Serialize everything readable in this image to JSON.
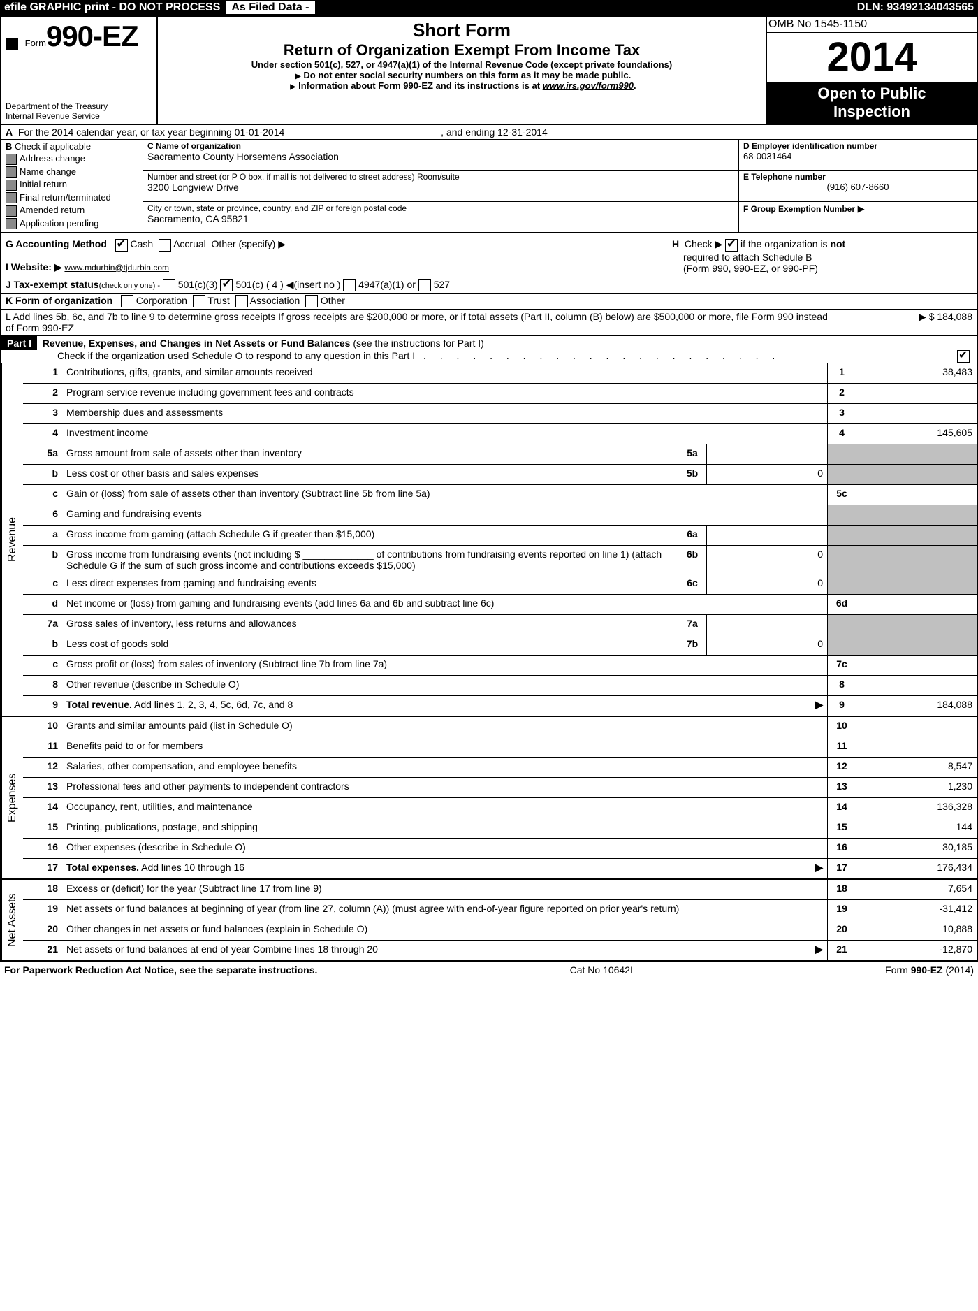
{
  "topbar": {
    "left_text": "efile GRAPHIC print - DO NOT PROCESS",
    "tab_text": "As Filed Data -",
    "dln_label": "DLN:",
    "dln_value": "93492134043565"
  },
  "header": {
    "form_label": "Form",
    "form_number": "990-EZ",
    "dept1": "Department of the Treasury",
    "dept2": "Internal Revenue Service",
    "short_form": "Short Form",
    "title": "Return of Organization Exempt From Income Tax",
    "subtitle": "Under section 501(c), 527, or 4947(a)(1) of the Internal Revenue Code (except private foundations)",
    "note1": "Do not enter social security numbers on this form as it may be made public.",
    "note2_pre": "Information about Form 990-EZ and its instructions is at ",
    "note2_link": "www.irs.gov/form990",
    "omb": "OMB No 1545-1150",
    "year": "2014",
    "open1": "Open to Public",
    "open2": "Inspection"
  },
  "rowA": {
    "label_a": "A",
    "text1": "For the 2014 calendar year, or tax year beginning 01-01-2014",
    "text2": ", and ending 12-31-2014"
  },
  "colB": {
    "label": "B",
    "header": "Check if applicable",
    "opts": [
      "Address change",
      "Name change",
      "Initial return",
      "Final return/terminated",
      "Amended return",
      "Application pending"
    ]
  },
  "colC": {
    "c_label": "C Name of organization",
    "c_value": "Sacramento County Horsemens Association",
    "addr_label": "Number and street (or P O box, if mail is not delivered to street address) Room/suite",
    "addr_value": "3200 Longview Drive",
    "city_label": "City or town, state or province, country, and ZIP or foreign postal code",
    "city_value": "Sacramento, CA  95821"
  },
  "colD": {
    "d_label": "D Employer identification number",
    "d_value": "68-0031464",
    "e_label": "E Telephone number",
    "e_value": "(916) 607-8660",
    "f_label": "F Group Exemption Number",
    "f_arrow": "▶"
  },
  "rowG": {
    "label": "G Accounting Method",
    "cash": "Cash",
    "accrual": "Accrual",
    "other": "Other (specify) ▶"
  },
  "rowH": {
    "pre": "H",
    "text1": "Check ▶",
    "text2": "if the organization is",
    "not": "not",
    "text3": "required to attach Schedule B",
    "text4": "(Form 990, 990-EZ, or 990-PF)"
  },
  "rowI": {
    "label": "I Website: ▶",
    "value": "www.mdurbin@tjdurbin.com"
  },
  "rowJ": {
    "label": "J Tax-exempt status",
    "hint": "(check only one) -",
    "o1": "501(c)(3)",
    "o2": "501(c) ( 4 )",
    "o2_hint": "◀(insert no )",
    "o3": "4947(a)(1) or",
    "o4": "527"
  },
  "rowK": {
    "label": "K Form of organization",
    "o1": "Corporation",
    "o2": "Trust",
    "o3": "Association",
    "o4": "Other"
  },
  "rowL": {
    "text": "L Add lines 5b, 6c, and 7b to line 9 to determine gross receipts If gross receipts are $200,000 or more, or if total assets (Part II, column (B) below) are $500,000 or more, file Form 990 instead of Form 990-EZ",
    "arrow": "▶",
    "value": "$ 184,088"
  },
  "part1": {
    "label": "Part I",
    "title": "Revenue, Expenses, and Changes in Net Assets or Fund Balances",
    "hint": "(see the instructions for Part I)",
    "sub": "Check if the organization used Schedule O to respond to any question in this Part I"
  },
  "sections": {
    "revenue": "Revenue",
    "expenses": "Expenses",
    "netassets": "Net Assets"
  },
  "lines": [
    {
      "n": "1",
      "d": "Contributions, gifts, grants, and similar amounts received",
      "rn": "1",
      "rv": "38,483"
    },
    {
      "n": "2",
      "d": "Program service revenue including government fees and contracts",
      "rn": "2",
      "rv": ""
    },
    {
      "n": "3",
      "d": "Membership dues and assessments",
      "rn": "3",
      "rv": ""
    },
    {
      "n": "4",
      "d": "Investment income",
      "rn": "4",
      "rv": "145,605"
    },
    {
      "n": "5a",
      "d": "Gross amount from sale of assets other than inventory",
      "sn": "5a",
      "sv": "",
      "rn": "",
      "rv": "",
      "shaded": true
    },
    {
      "n": "b",
      "d": "Less  cost or other basis and sales expenses",
      "sn": "5b",
      "sv": "0",
      "rn": "",
      "rv": "",
      "shaded": true
    },
    {
      "n": "c",
      "d": "Gain or (loss) from sale of assets other than inventory (Subtract line 5b from line 5a)",
      "rn": "5c",
      "rv": ""
    },
    {
      "n": "6",
      "d": "Gaming and fundraising events",
      "rn": "",
      "rv": "",
      "shaded": true,
      "nobottom": true
    },
    {
      "n": "a",
      "d": "Gross income from gaming (attach Schedule G if greater than $15,000)",
      "sn": "6a",
      "sv": "",
      "rn": "",
      "rv": "",
      "shaded": true
    },
    {
      "n": "b",
      "d": "Gross income from fundraising events (not including $ _____________ of contributions from fundraising events reported on line 1) (attach Schedule G if the sum of such gross income and contributions exceeds $15,000)",
      "sn": "6b",
      "sv": "0",
      "rn": "",
      "rv": "",
      "shaded": true
    },
    {
      "n": "c",
      "d": "Less  direct expenses from gaming and fundraising events",
      "sn": "6c",
      "sv": "0",
      "rn": "",
      "rv": "",
      "shaded": true
    },
    {
      "n": "d",
      "d": "Net income or (loss) from gaming and fundraising events (add lines 6a and 6b and subtract line 6c)",
      "rn": "6d",
      "rv": ""
    },
    {
      "n": "7a",
      "d": "Gross sales of inventory, less returns and allowances",
      "sn": "7a",
      "sv": "",
      "rn": "",
      "rv": "",
      "shaded": true
    },
    {
      "n": "b",
      "d": "Less  cost of goods sold",
      "sn": "7b",
      "sv": "0",
      "rn": "",
      "rv": "",
      "shaded": true
    },
    {
      "n": "c",
      "d": "Gross profit or (loss) from sales of inventory (Subtract line 7b from line 7a)",
      "rn": "7c",
      "rv": ""
    },
    {
      "n": "8",
      "d": "Other revenue (describe in Schedule O)",
      "rn": "8",
      "rv": ""
    },
    {
      "n": "9",
      "d": "Total revenue. Add lines 1, 2, 3, 4, 5c, 6d, 7c, and 8",
      "rn": "9",
      "rv": "184,088",
      "bold": true,
      "arrow": true
    }
  ],
  "expense_lines": [
    {
      "n": "10",
      "d": "Grants and similar amounts paid (list in Schedule O)",
      "rn": "10",
      "rv": ""
    },
    {
      "n": "11",
      "d": "Benefits paid to or for members",
      "rn": "11",
      "rv": ""
    },
    {
      "n": "12",
      "d": "Salaries, other compensation, and employee benefits",
      "rn": "12",
      "rv": "8,547"
    },
    {
      "n": "13",
      "d": "Professional fees and other payments to independent contractors",
      "rn": "13",
      "rv": "1,230"
    },
    {
      "n": "14",
      "d": "Occupancy, rent, utilities, and maintenance",
      "rn": "14",
      "rv": "136,328"
    },
    {
      "n": "15",
      "d": "Printing, publications, postage, and shipping",
      "rn": "15",
      "rv": "144"
    },
    {
      "n": "16",
      "d": "Other expenses (describe in Schedule O)",
      "rn": "16",
      "rv": "30,185"
    },
    {
      "n": "17",
      "d": "Total expenses. Add lines 10 through 16",
      "rn": "17",
      "rv": "176,434",
      "bold": true,
      "arrow": true
    }
  ],
  "net_lines": [
    {
      "n": "18",
      "d": "Excess or (deficit) for the year (Subtract line 17 from line 9)",
      "rn": "18",
      "rv": "7,654"
    },
    {
      "n": "19",
      "d": "Net assets or fund balances at beginning of year (from line 27, column (A)) (must agree with end-of-year figure reported on prior year's return)",
      "rn": "19",
      "rv": "-31,412"
    },
    {
      "n": "20",
      "d": "Other changes in net assets or fund balances (explain in Schedule O)",
      "rn": "20",
      "rv": "10,888"
    },
    {
      "n": "21",
      "d": "Net assets or fund balances at end of year Combine lines 18 through 20",
      "rn": "21",
      "rv": "-12,870",
      "arrow": true
    }
  ],
  "footer": {
    "left": "For Paperwork Reduction Act Notice, see the separate instructions.",
    "mid": "Cat No 10642I",
    "right_pre": "Form",
    "right_form": "990-EZ",
    "right_year": "(2014)"
  }
}
